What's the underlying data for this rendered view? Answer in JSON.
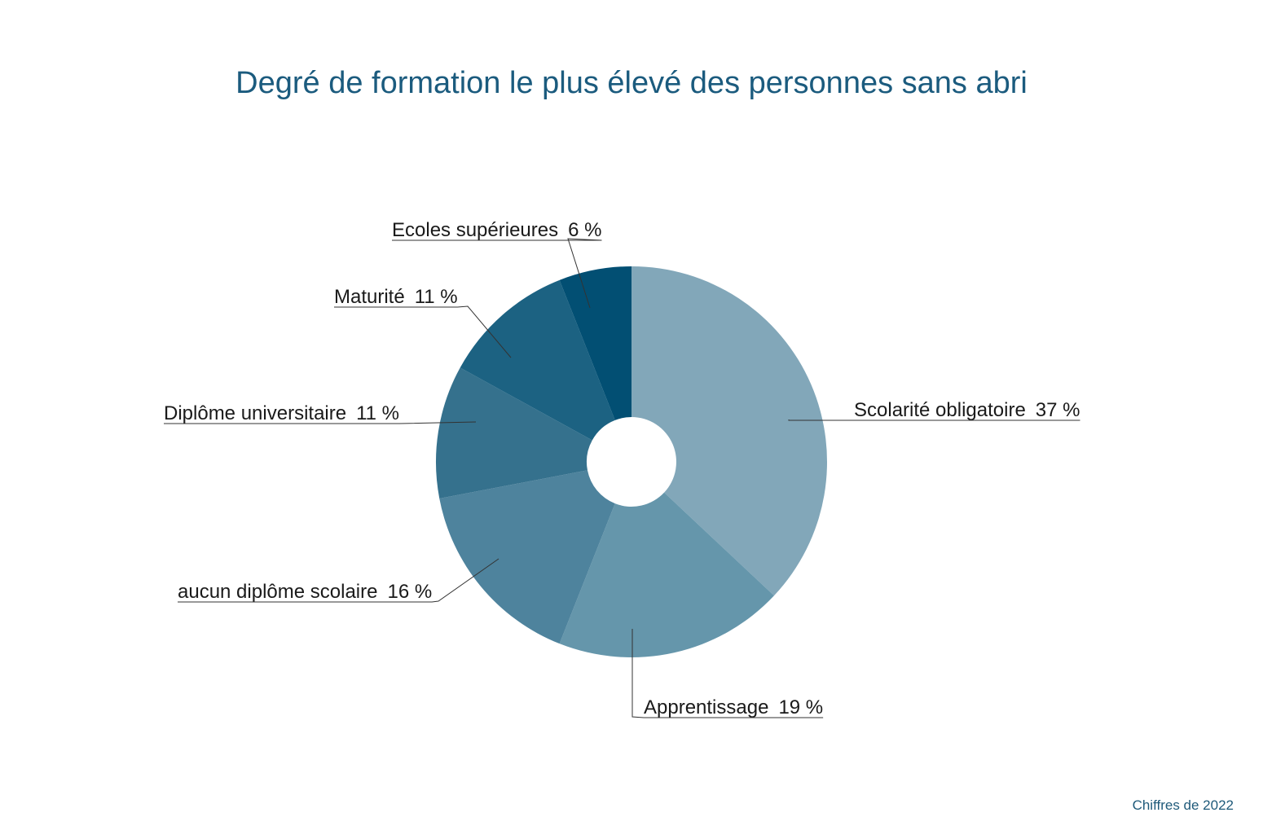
{
  "chart_data": {
    "type": "pie",
    "title": "Degré de formation le plus élevé des personnes sans abri",
    "categories": [
      "Scolarité obligatoire",
      "Apprentissage",
      "aucun diplôme scolaire",
      "Diplôme universitaire",
      "Maturité",
      "Ecoles supérieures"
    ],
    "values": [
      37,
      19,
      16,
      11,
      11,
      6
    ],
    "value_labels": [
      "37 %",
      "19 %",
      "16 %",
      "11 %",
      "11 %",
      "6 %"
    ],
    "colors": [
      "#82a7b9",
      "#6596ab",
      "#4e839d",
      "#35718d",
      "#1c6282",
      "#024f73"
    ],
    "note": "Chiffres de 2022"
  }
}
